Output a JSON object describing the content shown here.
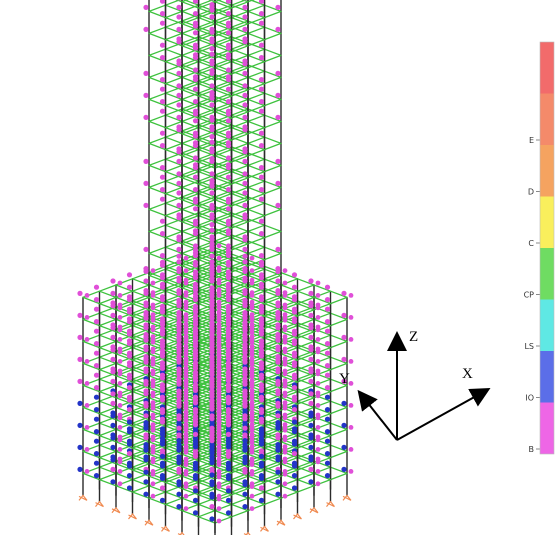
{
  "axes": {
    "z_label": "Z",
    "y_label": "Y",
    "x_label": "X"
  },
  "legend": {
    "items": [
      {
        "label": "",
        "color": "#f26b6b"
      },
      {
        "label": "E",
        "color": "#f48a6a"
      },
      {
        "label": "D",
        "color": "#f5a360"
      },
      {
        "label": "C",
        "color": "#f9ef5c"
      },
      {
        "label": "CP",
        "color": "#6fdc62"
      },
      {
        "label": "LS",
        "color": "#5fe8e4"
      },
      {
        "label": "IO",
        "color": "#5b6ee8"
      },
      {
        "label": "B",
        "color": "#ee66e6"
      }
    ]
  },
  "colors": {
    "beam_green": "#3ec23e",
    "column_dark": "#2b2b2b",
    "hinge_magenta": "#e04fd8",
    "hinge_blue": "#2334c8",
    "support_orange": "#f08a50"
  }
}
